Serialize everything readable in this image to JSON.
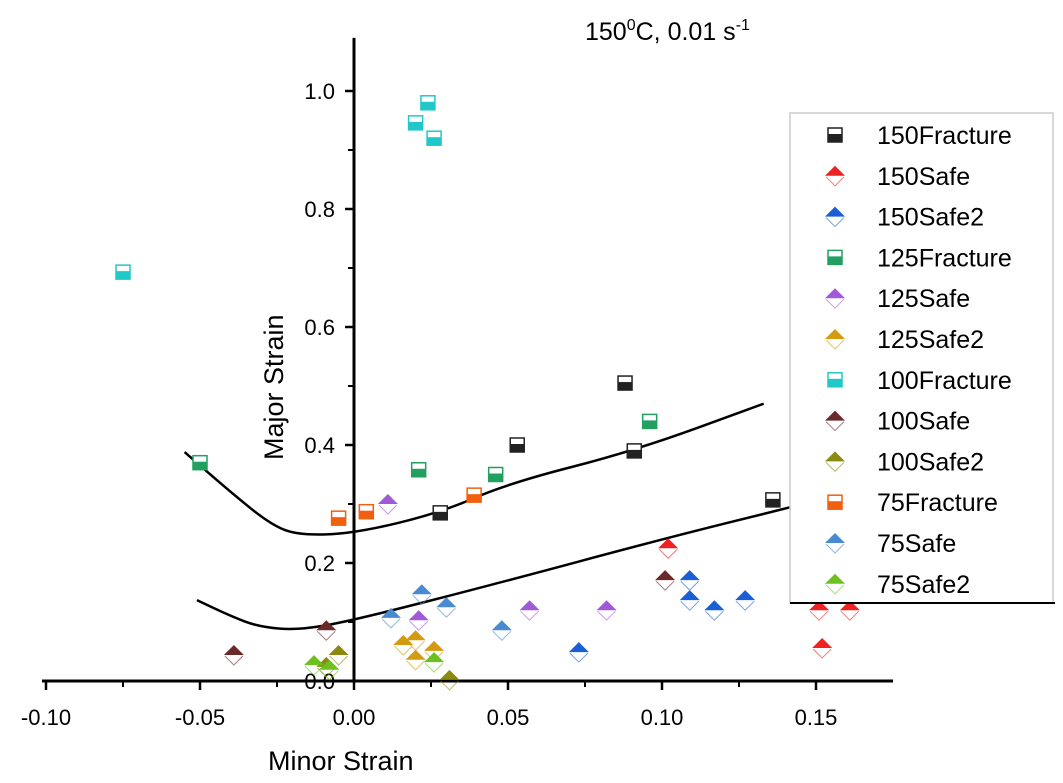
{
  "chart_data": {
    "type": "scatter",
    "title": "150⁰C, 0.01 s⁻¹",
    "title_parts": {
      "main": "150",
      "sup1": "0",
      "mid": "C, 0.01 s",
      "sup2": "-1"
    },
    "xlabel": "Minor Strain",
    "ylabel": "Major Strain",
    "xlim": [
      -0.1,
      0.175
    ],
    "ylim": [
      0.0,
      1.09
    ],
    "xticks": [
      -0.1,
      -0.05,
      0.0,
      0.05,
      0.1,
      0.15
    ],
    "xtick_labels": [
      "-0.10",
      "-0.05",
      "0.00",
      "0.05",
      "0.10",
      "0.15"
    ],
    "yticks": [
      0.0,
      0.2,
      0.4,
      0.6,
      0.8,
      1.0
    ],
    "ytick_labels": [
      "0.0",
      "0.2",
      "0.4",
      "0.6",
      "0.8",
      "1.0"
    ],
    "grid": false,
    "legend_placement": "right",
    "series": [
      {
        "name": "150Fracture",
        "marker": "square",
        "color": "#222222",
        "points": [
          [
            0.028,
            0.285
          ],
          [
            0.053,
            0.4
          ],
          [
            0.088,
            0.505
          ],
          [
            0.091,
            0.39
          ],
          [
            0.136,
            0.307
          ]
        ]
      },
      {
        "name": "150Safe",
        "marker": "triangle-diamond",
        "color": "#ee2222",
        "points": [
          [
            0.102,
            0.225
          ],
          [
            0.151,
            0.12
          ],
          [
            0.161,
            0.12
          ],
          [
            0.152,
            0.056
          ]
        ]
      },
      {
        "name": "150Safe2",
        "marker": "triangle-diamond",
        "color": "#1a5fd6",
        "points": [
          [
            0.073,
            0.049
          ],
          [
            0.109,
            0.171
          ],
          [
            0.109,
            0.137
          ],
          [
            0.117,
            0.12
          ],
          [
            0.127,
            0.137
          ]
        ]
      },
      {
        "name": "125Fracture",
        "marker": "square",
        "color": "#22a060",
        "points": [
          [
            -0.05,
            0.37
          ],
          [
            0.021,
            0.358
          ],
          [
            0.046,
            0.35
          ],
          [
            0.096,
            0.44
          ]
        ]
      },
      {
        "name": "125Safe",
        "marker": "triangle-diamond",
        "color": "#a05ad8",
        "points": [
          [
            0.011,
            0.3
          ],
          [
            0.021,
            0.103
          ],
          [
            0.057,
            0.12
          ],
          [
            0.082,
            0.12
          ]
        ]
      },
      {
        "name": "125Safe2",
        "marker": "triangle-diamond",
        "color": "#d49a10",
        "points": [
          [
            0.016,
            0.061
          ],
          [
            0.02,
            0.069
          ],
          [
            0.026,
            0.051
          ],
          [
            0.02,
            0.036
          ]
        ]
      },
      {
        "name": "100Fracture",
        "marker": "square",
        "color": "#22c8c8",
        "points": [
          [
            -0.075,
            0.693
          ],
          [
            0.02,
            0.946
          ],
          [
            0.024,
            0.98
          ],
          [
            0.026,
            0.92
          ]
        ]
      },
      {
        "name": "100Safe",
        "marker": "triangle-diamond",
        "color": "#6b2a2a",
        "points": [
          [
            0.101,
            0.171
          ],
          [
            -0.009,
            0.086
          ],
          [
            -0.039,
            0.044
          ]
        ]
      },
      {
        "name": "100Safe2",
        "marker": "triangle-diamond",
        "color": "#8a8a10",
        "points": [
          [
            0.031,
            0.002
          ],
          [
            -0.005,
            0.044
          ],
          [
            -0.009,
            0.024
          ]
        ]
      },
      {
        "name": "75Fracture",
        "marker": "square",
        "color": "#f06010",
        "points": [
          [
            0.004,
            0.287
          ],
          [
            -0.005,
            0.276
          ],
          [
            0.039,
            0.315
          ]
        ]
      },
      {
        "name": "75Safe",
        "marker": "triangle-diamond",
        "color": "#4a8ad0",
        "points": [
          [
            0.022,
            0.147
          ],
          [
            0.03,
            0.125
          ],
          [
            0.012,
            0.107
          ],
          [
            0.048,
            0.086
          ]
        ]
      },
      {
        "name": "75Safe2",
        "marker": "triangle-diamond",
        "color": "#6cc020",
        "points": [
          [
            0.026,
            0.032
          ],
          [
            -0.013,
            0.027
          ],
          [
            -0.008,
            0.019
          ]
        ]
      }
    ],
    "curves": [
      {
        "points": [
          [
            -0.055,
            0.388
          ],
          [
            -0.04,
            0.32
          ],
          [
            -0.027,
            0.265
          ],
          [
            -0.018,
            0.247
          ],
          [
            0.0,
            0.25
          ],
          [
            0.028,
            0.285
          ],
          [
            0.05,
            0.335
          ],
          [
            0.091,
            0.39
          ],
          [
            0.133,
            0.47
          ]
        ]
      },
      {
        "points": [
          [
            -0.051,
            0.137
          ],
          [
            -0.04,
            0.11
          ],
          [
            -0.031,
            0.092
          ],
          [
            -0.018,
            0.086
          ],
          [
            0.0,
            0.103
          ],
          [
            0.047,
            0.166
          ],
          [
            0.099,
            0.239
          ],
          [
            0.142,
            0.295
          ]
        ]
      }
    ]
  }
}
